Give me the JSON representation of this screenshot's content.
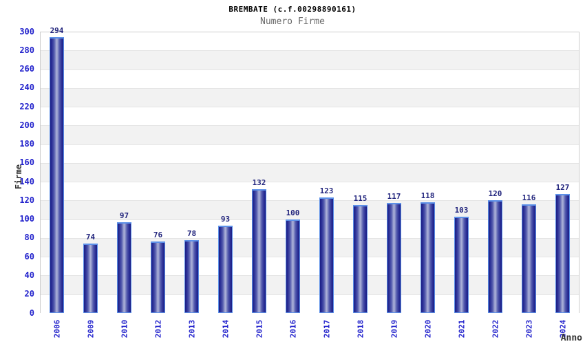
{
  "header": {
    "title": "BREMBATE (c.f.00298890161)",
    "subtitle": "Numero Firme"
  },
  "chart_data": {
    "type": "bar",
    "title": "BREMBATE (c.f.00298890161)",
    "subtitle": "Numero Firme",
    "categories": [
      "2006",
      "2009",
      "2010",
      "2012",
      "2013",
      "2014",
      "2015",
      "2016",
      "2017",
      "2018",
      "2019",
      "2020",
      "2021",
      "2022",
      "2023",
      "2024"
    ],
    "values": [
      294,
      74,
      97,
      76,
      78,
      93,
      132,
      100,
      123,
      115,
      117,
      118,
      103,
      120,
      116,
      127
    ],
    "xlabel": "Anno",
    "ylabel": "Firme",
    "ylim": [
      0,
      300
    ],
    "ytick_step": 20,
    "grid": "alternating horizontal bands every 20 units, white and light gray",
    "legend": "none",
    "value_labels_shown": true,
    "colors": {
      "bar_dark": "#1b1e85",
      "bar_light": "#a8aed6",
      "bar_border": "#5c90e8",
      "axis_tick_text": "#2222cc",
      "value_label_text": "#22257d",
      "band_gray": "#f2f2f2",
      "band_white": "#ffffff",
      "plot_border": "#cccccc",
      "title_text": "#000000",
      "subtitle_text": "#666666",
      "axis_title_text": "#333333"
    }
  }
}
